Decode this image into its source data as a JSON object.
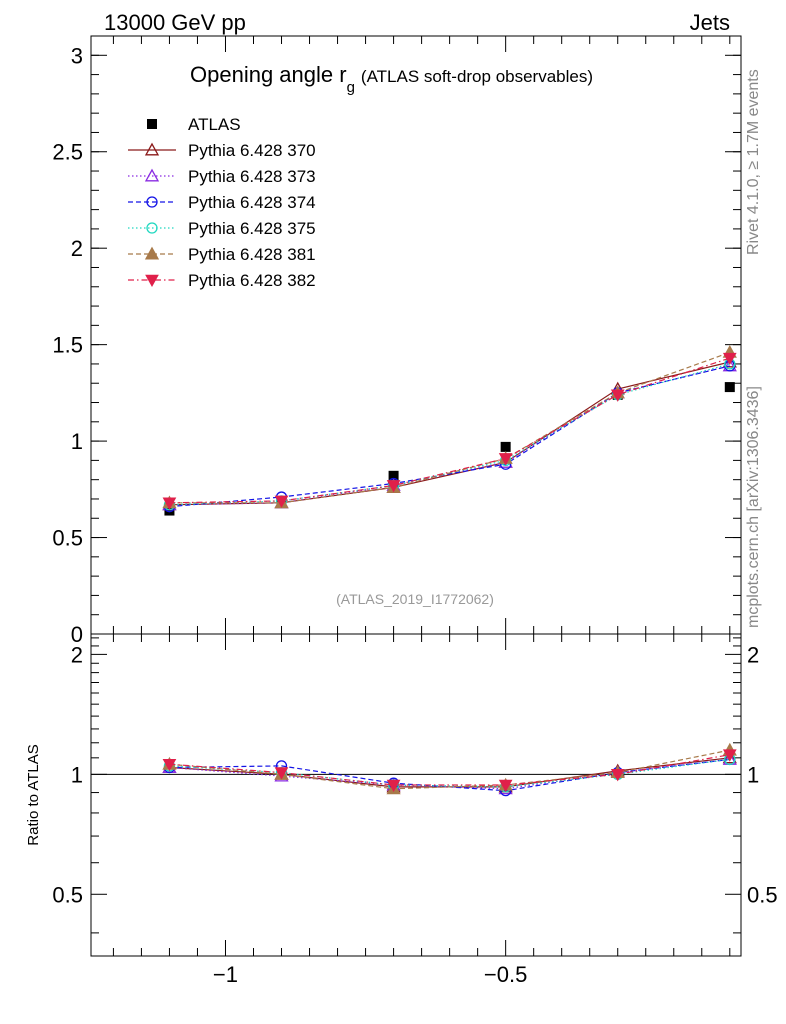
{
  "header": {
    "energy_label": "13000 GeV pp",
    "process_label": "Jets"
  },
  "side_labels": {
    "rivet": "Rivet 4.1.0, ≥ 1.7M events",
    "mcplots": "mcplots.cern.ch [arXiv:1306.3436]"
  },
  "chart_data": [
    {
      "type": "scatter",
      "panel": "main",
      "title": "Opening angle r",
      "title_subscript": "g",
      "subtitle": "(ATLAS soft-drop observables)",
      "watermark": "(ATLAS_2019_I1772062)",
      "xlabel": "",
      "ylabel": "",
      "xlim": [
        -1.24,
        -0.08
      ],
      "ylim": [
        0,
        3.1
      ],
      "y_ticks": [
        {
          "v": 0,
          "label": "0"
        },
        {
          "v": 0.5,
          "label": "0.5"
        },
        {
          "v": 1,
          "label": "1"
        },
        {
          "v": 1.5,
          "label": "1.5"
        },
        {
          "v": 2,
          "label": "2"
        },
        {
          "v": 2.5,
          "label": "2.5"
        },
        {
          "v": 3,
          "label": "3"
        }
      ],
      "x": [
        -1.1,
        -0.9,
        -0.7,
        -0.5,
        -0.3,
        -0.1
      ],
      "legend_position": "top-left",
      "series": [
        {
          "name": "ATLAS",
          "color": "#000000",
          "marker": "square-filled",
          "line": "none",
          "values": [
            0.64,
            0.68,
            0.82,
            0.97,
            1.24,
            1.28
          ]
        },
        {
          "name": "Pythia 6.428 370",
          "color": "#8B1A1A",
          "marker": "triangle-open",
          "line": "solid",
          "values": [
            0.67,
            0.68,
            0.76,
            0.89,
            1.27,
            1.41
          ]
        },
        {
          "name": "Pythia 6.428 373",
          "color": "#8A2BE2",
          "marker": "triangle-open",
          "line": "dotted",
          "values": [
            0.67,
            0.68,
            0.77,
            0.89,
            1.25,
            1.39
          ]
        },
        {
          "name": "Pythia 6.428 374",
          "color": "#1414E6",
          "marker": "circle-open",
          "line": "dashed",
          "values": [
            0.66,
            0.71,
            0.78,
            0.88,
            1.25,
            1.39
          ]
        },
        {
          "name": "Pythia 6.428 375",
          "color": "#20D8C0",
          "marker": "circle-open",
          "line": "dotted",
          "values": [
            0.67,
            0.69,
            0.77,
            0.9,
            1.24,
            1.4
          ]
        },
        {
          "name": "Pythia 6.428 381",
          "color": "#A87A4A",
          "marker": "triangle-filled",
          "line": "dashed",
          "values": [
            0.68,
            0.68,
            0.76,
            0.91,
            1.25,
            1.46
          ]
        },
        {
          "name": "Pythia 6.428 382",
          "color": "#E0204A",
          "marker": "triangle-down-filled",
          "line": "dashdot",
          "values": [
            0.68,
            0.69,
            0.77,
            0.91,
            1.24,
            1.43
          ]
        }
      ]
    },
    {
      "type": "scatter",
      "panel": "ratio",
      "xlabel": "",
      "ylabel": "Ratio to ATLAS",
      "xlim": [
        -1.24,
        -0.08
      ],
      "ylim": [
        0.35,
        2.25
      ],
      "y_scale": "log",
      "y_ticks": [
        {
          "v": 0.5,
          "label": "0.5"
        },
        {
          "v": 1,
          "label": "1"
        },
        {
          "v": 2,
          "label": "2"
        }
      ],
      "x_ticks": [
        {
          "v": -1,
          "label": "−1"
        },
        {
          "v": -0.5,
          "label": "−0.5"
        }
      ],
      "reference_line": 1,
      "x": [
        -1.1,
        -0.9,
        -0.7,
        -0.5,
        -0.3,
        -0.1
      ],
      "series": [
        {
          "name": "Pythia 6.428 370",
          "color": "#8B1A1A",
          "marker": "triangle-open",
          "line": "solid",
          "values": [
            1.04,
            1.0,
            0.93,
            0.93,
            1.02,
            1.1
          ]
        },
        {
          "name": "Pythia 6.428 373",
          "color": "#8A2BE2",
          "marker": "triangle-open",
          "line": "dotted",
          "values": [
            1.04,
            0.99,
            0.94,
            0.92,
            1.01,
            1.09
          ]
        },
        {
          "name": "Pythia 6.428 374",
          "color": "#1414E6",
          "marker": "circle-open",
          "line": "dashed",
          "values": [
            1.04,
            1.05,
            0.95,
            0.91,
            1.01,
            1.09
          ]
        },
        {
          "name": "Pythia 6.428 375",
          "color": "#20D8C0",
          "marker": "circle-open",
          "line": "dotted",
          "values": [
            1.05,
            1.01,
            0.94,
            0.93,
            1.0,
            1.09
          ]
        },
        {
          "name": "Pythia 6.428 381",
          "color": "#A87A4A",
          "marker": "triangle-filled",
          "line": "dashed",
          "values": [
            1.06,
            1.0,
            0.92,
            0.94,
            1.01,
            1.15
          ]
        },
        {
          "name": "Pythia 6.428 382",
          "color": "#E0204A",
          "marker": "triangle-down-filled",
          "line": "dashdot",
          "values": [
            1.06,
            1.01,
            0.94,
            0.94,
            1.0,
            1.12
          ]
        }
      ]
    }
  ]
}
